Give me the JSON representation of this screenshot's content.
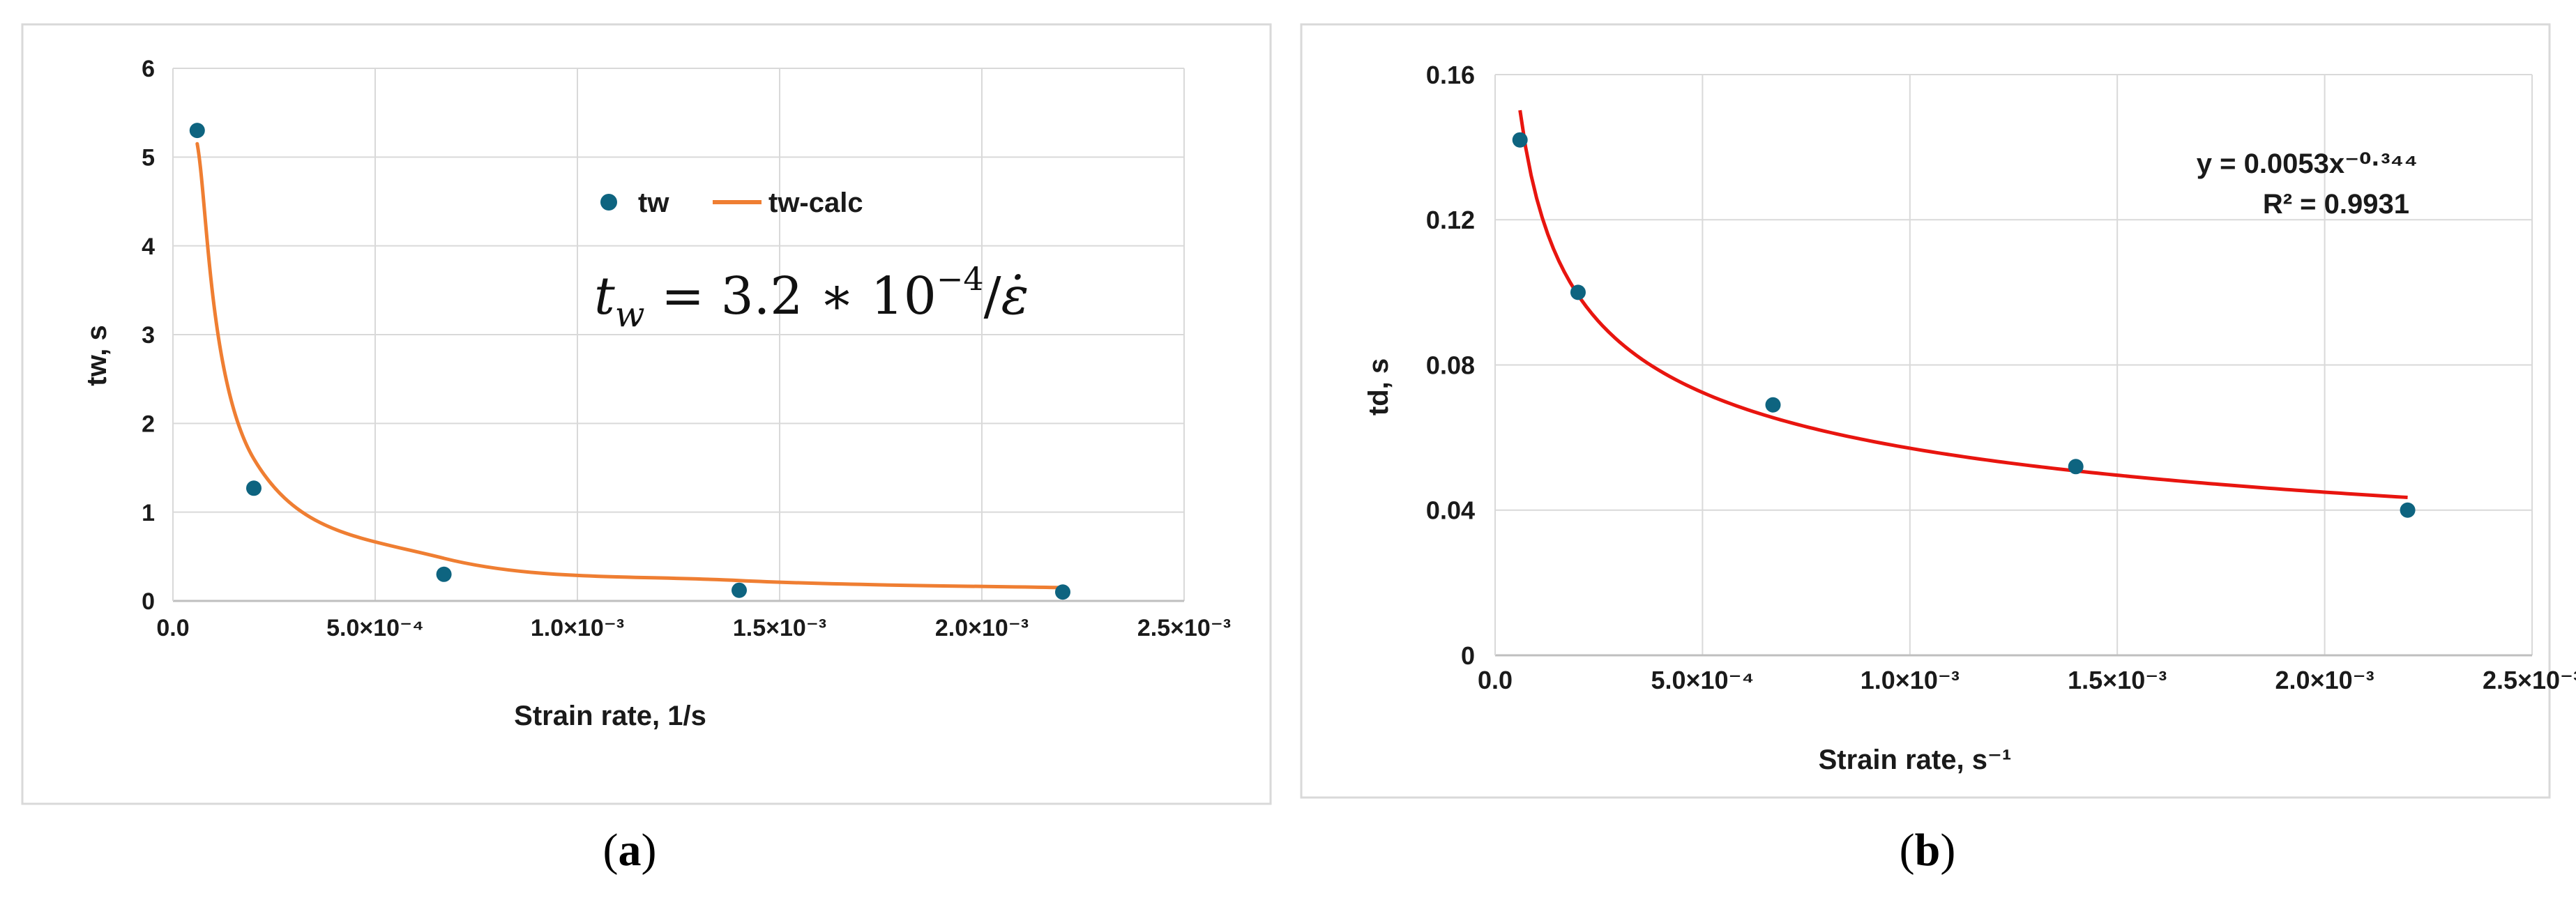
{
  "chart_data": [
    {
      "type": "scatter",
      "panel": "a",
      "caption_open": "(",
      "caption_letter": "a",
      "caption_close": ")",
      "xlabel": "Strain rate, 1/s",
      "ylabel": "tw, s",
      "xlim": [
        0,
        0.0025
      ],
      "ylim": [
        0,
        6
      ],
      "grid": true,
      "x_tick_labels": [
        "0.0",
        "5.0×10⁻⁴",
        "1.0×10⁻³",
        "1.5×10⁻³",
        "2.0×10⁻³",
        "2.5×10⁻³"
      ],
      "y_tick_labels": [
        "0",
        "1",
        "2",
        "3",
        "4",
        "5",
        "6"
      ],
      "legend_position": "upper-middle",
      "series": [
        {
          "name": "tw",
          "kind": "points",
          "color": "#0e6480",
          "x": [
            6e-05,
            0.0002,
            0.00067,
            0.0014,
            0.0022
          ],
          "y": [
            5.3,
            1.27,
            0.3,
            0.12,
            0.1
          ]
        },
        {
          "name": "tw-calc",
          "kind": "line",
          "color": "#ef7e32",
          "x": [
            6e-05,
            0.0002,
            0.00067,
            0.0014,
            0.0022
          ],
          "y": [
            5.15,
            1.6,
            0.48,
            0.23,
            0.15
          ]
        }
      ],
      "annotation": "tw = 3.2 * 10⁻⁴/ε̇"
    },
    {
      "type": "scatter",
      "panel": "b",
      "caption_open": "(",
      "caption_letter": "b",
      "caption_close": ")",
      "xlabel": "Strain rate, s⁻¹",
      "ylabel": "td, s",
      "xlim": [
        0,
        0.0025
      ],
      "ylim": [
        0,
        0.16
      ],
      "grid": true,
      "x_tick_labels": [
        "0.0",
        "5.0×10⁻⁴",
        "1.0×10⁻³",
        "1.5×10⁻³",
        "2.0×10⁻³",
        "2.5×10⁻³"
      ],
      "y_tick_labels": [
        "0",
        "0.04",
        "0.08",
        "0.12",
        "0.16"
      ],
      "series": [
        {
          "name": "td",
          "kind": "points",
          "color": "#0e6480",
          "x": [
            6e-05,
            0.0002,
            0.00067,
            0.0014,
            0.0022
          ],
          "y": [
            0.142,
            0.1,
            0.069,
            0.052,
            0.04
          ]
        },
        {
          "name": "power fit",
          "kind": "trendline",
          "color": "#e8150f",
          "coefficient": 0.0053,
          "exponent": -0.344,
          "x_range": [
            6e-05,
            0.0022
          ]
        }
      ],
      "trend_equation": "y = 0.0053x⁻⁰·³⁴⁴",
      "r_squared": "R² = 0.9931"
    }
  ]
}
